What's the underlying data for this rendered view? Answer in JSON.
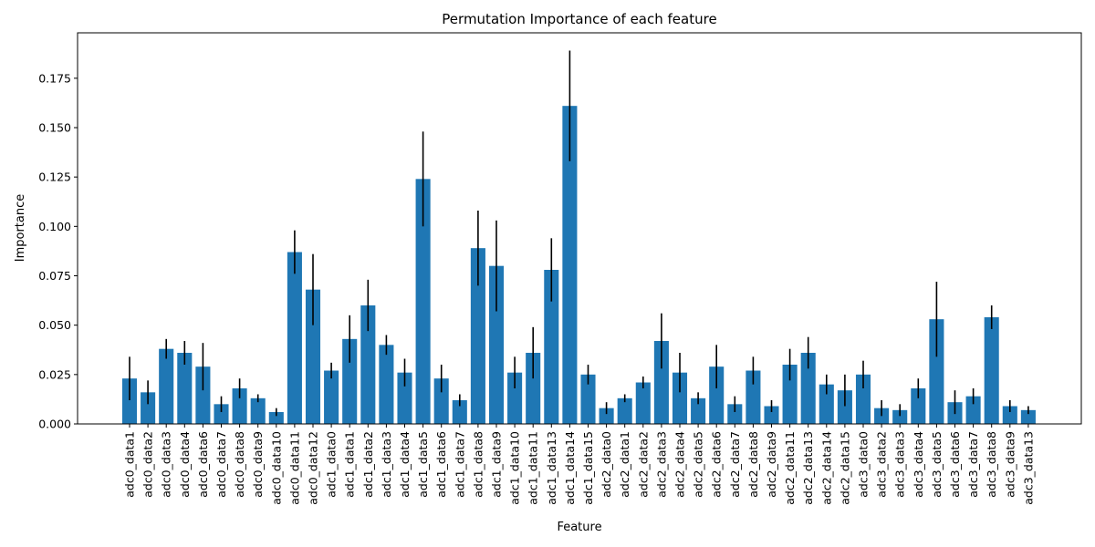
{
  "chart_data": {
    "type": "bar",
    "title": "Permutation Importance of each feature",
    "xlabel": "Feature",
    "ylabel": "Importance",
    "ylim": [
      0,
      0.198
    ],
    "yticks": [
      "0.000",
      "0.025",
      "0.050",
      "0.075",
      "0.100",
      "0.125",
      "0.150",
      "0.175"
    ],
    "grid": false,
    "legend": "none",
    "bar_color": "#1f77b4",
    "error_bar_color": "#000000",
    "categories": [
      "adc0_data1",
      "adc0_data2",
      "adc0_data3",
      "adc0_data4",
      "adc0_data6",
      "adc0_data7",
      "adc0_data8",
      "adc0_data9",
      "adc0_data10",
      "adc0_data11",
      "adc0_data12",
      "adc1_data0",
      "adc1_data1",
      "adc1_data2",
      "adc1_data3",
      "adc1_data4",
      "adc1_data5",
      "adc1_data6",
      "adc1_data7",
      "adc1_data8",
      "adc1_data9",
      "adc1_data10",
      "adc1_data11",
      "adc1_data13",
      "adc1_data14",
      "adc1_data15",
      "adc2_data0",
      "adc2_data1",
      "adc2_data2",
      "adc2_data3",
      "adc2_data4",
      "adc2_data5",
      "adc2_data6",
      "adc2_data7",
      "adc2_data8",
      "adc2_data9",
      "adc2_data11",
      "adc2_data13",
      "adc2_data14",
      "adc2_data15",
      "adc3_data0",
      "adc3_data2",
      "adc3_data3",
      "adc3_data4",
      "adc3_data5",
      "adc3_data6",
      "adc3_data7",
      "adc3_data8",
      "adc3_data9",
      "adc3_data13"
    ],
    "values": [
      0.023,
      0.016,
      0.038,
      0.036,
      0.029,
      0.01,
      0.018,
      0.013,
      0.006,
      0.087,
      0.068,
      0.027,
      0.043,
      0.06,
      0.04,
      0.026,
      0.124,
      0.023,
      0.012,
      0.089,
      0.08,
      0.026,
      0.036,
      0.078,
      0.161,
      0.025,
      0.008,
      0.013,
      0.021,
      0.042,
      0.026,
      0.013,
      0.029,
      0.01,
      0.027,
      0.009,
      0.03,
      0.036,
      0.02,
      0.017,
      0.025,
      0.008,
      0.007,
      0.018,
      0.053,
      0.011,
      0.014,
      0.054,
      0.009,
      0.007
    ],
    "errors": [
      0.011,
      0.006,
      0.005,
      0.006,
      0.012,
      0.004,
      0.005,
      0.002,
      0.002,
      0.011,
      0.018,
      0.004,
      0.012,
      0.013,
      0.005,
      0.007,
      0.024,
      0.007,
      0.003,
      0.019,
      0.023,
      0.008,
      0.013,
      0.016,
      0.028,
      0.005,
      0.003,
      0.002,
      0.003,
      0.014,
      0.01,
      0.003,
      0.011,
      0.004,
      0.007,
      0.003,
      0.008,
      0.008,
      0.005,
      0.008,
      0.007,
      0.004,
      0.003,
      0.005,
      0.019,
      0.006,
      0.004,
      0.006,
      0.003,
      0.002
    ]
  }
}
